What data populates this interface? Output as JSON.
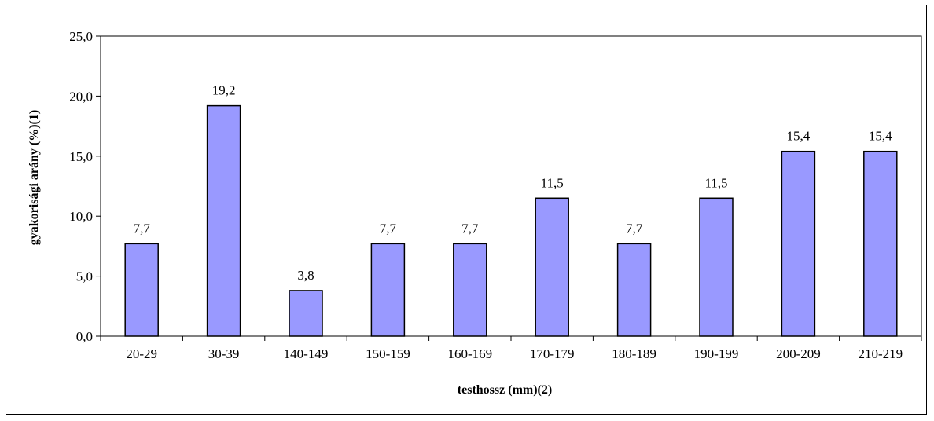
{
  "chart_data": {
    "type": "bar",
    "title": "",
    "xlabel": "testhossz (mm)(2)",
    "ylabel": "gyakorisági arány (%)(1)",
    "categories": [
      "20-29",
      "30-39",
      "140-149",
      "150-159",
      "160-169",
      "170-179",
      "180-189",
      "190-199",
      "200-209",
      "210-219"
    ],
    "values": [
      7.7,
      19.2,
      3.8,
      7.7,
      7.7,
      11.5,
      7.7,
      11.5,
      15.4,
      15.4
    ],
    "data_labels": [
      "7,7",
      "19,2",
      "3,8",
      "7,7",
      "7,7",
      "11,5",
      "7,7",
      "11,5",
      "15,4",
      "15,4"
    ],
    "ylim": [
      0,
      25
    ],
    "y_ticks": [
      0,
      5,
      10,
      15,
      20,
      25
    ],
    "y_tick_labels": [
      "0,0",
      "5,0",
      "10,0",
      "15,0",
      "20,0",
      "25,0"
    ],
    "grid": false,
    "legend": "none",
    "bar_color": "#9999ff",
    "bar_edge_color": "#000000"
  }
}
